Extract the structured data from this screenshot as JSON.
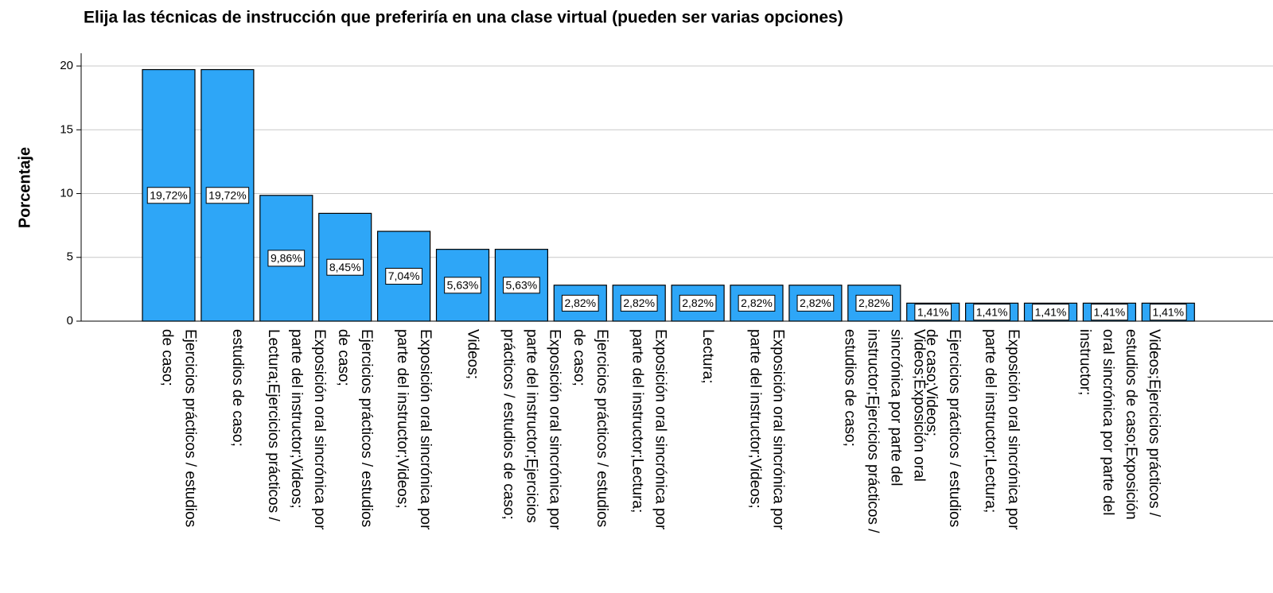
{
  "chart_data": {
    "type": "bar",
    "title": "Elija las técnicas de instrucción que preferiría en una clase virtual (pueden ser varias opciones)",
    "y_label": "Porcentaje",
    "categories": [
      [
        "Ejercicios prácticos / estudios",
        "de caso;"
      ],
      [
        "estudios de caso;"
      ],
      [
        "Exposición oral sincrónica por",
        "parte del instructor;Videos;",
        "Lectura;Ejercicios prácticos /"
      ],
      [
        "Ejercicios prácticos / estudios",
        "de caso;"
      ],
      [
        "Exposición oral sincrónica por",
        "parte del instructor;Videos;"
      ],
      [
        "Videos;"
      ],
      [
        "Exposición oral sincrónica por",
        "parte del instructor;Ejercicios",
        "prácticos / estudios de caso;"
      ],
      [
        "Ejercicios prácticos / estudios",
        "de caso;"
      ],
      [
        "Exposición oral sincrónica por",
        "parte del instructor;Lectura;"
      ],
      [
        "Lectura;"
      ],
      [
        "Exposición oral sincrónica por",
        "parte del instructor;Videos;"
      ],
      null,
      [
        "Videos;Exposición oral",
        "sincrónica por parte del",
        "instructor;Ejercicios prácticos /",
        "estudios de caso;"
      ],
      [
        "Ejercicios prácticos / estudios",
        "de caso;Videos;"
      ],
      [
        "Exposición oral sincrónica por",
        "parte del instructor;Lectura;"
      ],
      null,
      [
        "Videos;Ejercicios prácticos /",
        "estudios de caso;Exposición",
        "oral sincrónica por parte del",
        "instructor;"
      ],
      null
    ],
    "values": [
      19.72,
      19.72,
      9.86,
      8.45,
      7.04,
      5.63,
      5.63,
      2.82,
      2.82,
      2.82,
      2.82,
      2.82,
      2.82,
      1.41,
      1.41,
      1.41,
      1.41,
      1.41
    ],
    "value_labels": [
      "19,72%",
      "19,72%",
      "9,86%",
      "8,45%",
      "7,04%",
      "5,63%",
      "5,63%",
      "2,82%",
      "2,82%",
      "2,82%",
      "2,82%",
      "2,82%",
      "2,82%",
      "1,41%",
      "1,41%",
      "1,41%",
      "1,41%",
      "1,41%"
    ],
    "color": "#2ea6f7",
    "ylim": [
      0,
      21
    ],
    "yticks": [
      0,
      5,
      10,
      15,
      20
    ],
    "grid": true
  }
}
